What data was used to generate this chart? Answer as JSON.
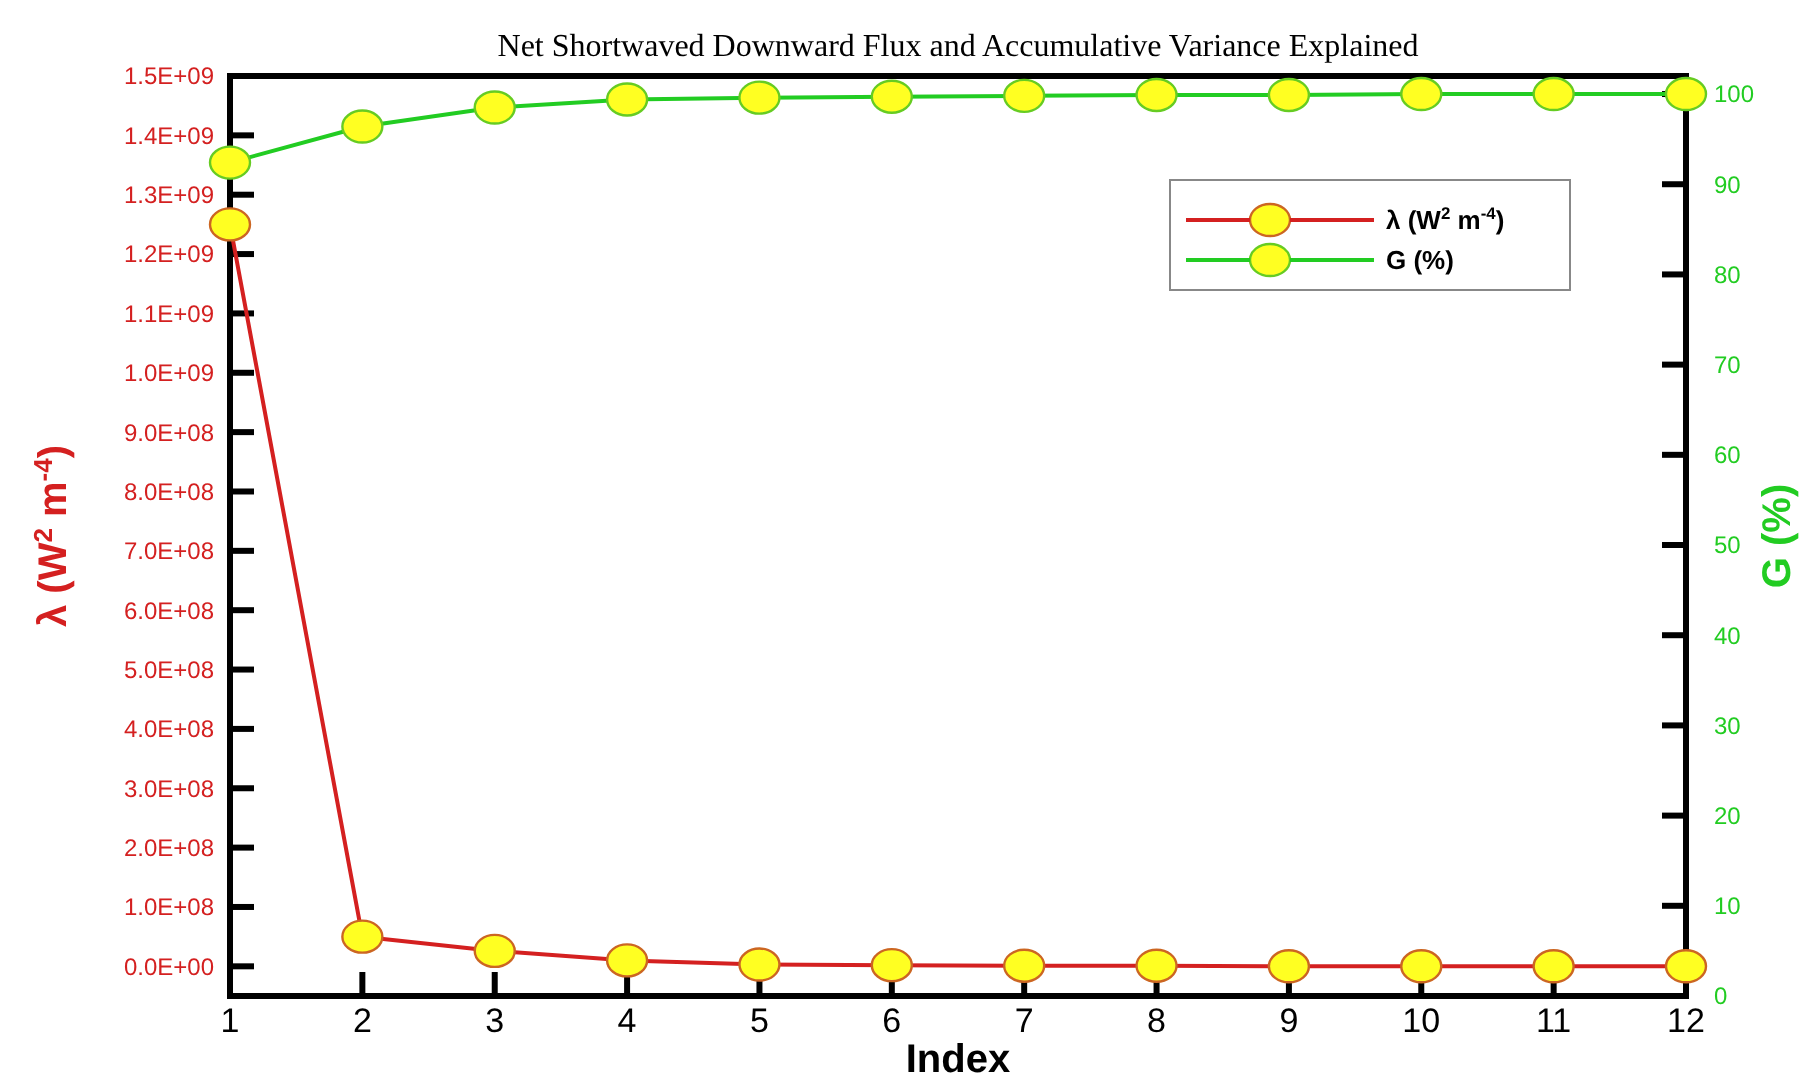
{
  "chart_data": {
    "type": "line",
    "title": "Net Shortwaved Downward Flux and Accumulative Variance Explained",
    "xlabel": "Index",
    "ylabel": "λ (W$^{2}$ m$^{-4}$)",
    "y2label": "G (%)",
    "x": [
      1,
      2,
      3,
      4,
      5,
      6,
      7,
      8,
      9,
      10,
      11,
      12
    ],
    "series": [
      {
        "name": "λ (W$^{2}$ m$^{-4}$)",
        "color": "#d42020",
        "values": [
          1250000000,
          50000000,
          26000000,
          10000000,
          3000000,
          2000000,
          1000000,
          1000000,
          0,
          0,
          0,
          0
        ]
      },
      {
        "name": "G (%)",
        "color": "#22cc22",
        "axis": "y2",
        "values": [
          92.4,
          96.4,
          98.5,
          99.4,
          99.6,
          99.7,
          99.8,
          99.9,
          99.9,
          100,
          100,
          100
        ]
      }
    ],
    "xlim": [
      1,
      12
    ],
    "xticks": [
      1,
      2,
      3,
      4,
      5,
      6,
      7,
      8,
      9,
      10,
      11,
      12
    ],
    "ylim": [
      -50000000,
      1500000000
    ],
    "yticks": [
      {
        "value": 0,
        "label": "0.0E+00"
      },
      {
        "value": 100000000,
        "label": "1.0E+08"
      },
      {
        "value": 200000000,
        "label": "2.0E+08"
      },
      {
        "value": 300000000,
        "label": "3.0E+08"
      },
      {
        "value": 400000000,
        "label": "4.0E+08"
      },
      {
        "value": 500000000,
        "label": "5.0E+08"
      },
      {
        "value": 600000000,
        "label": "6.0E+08"
      },
      {
        "value": 700000000,
        "label": "7.0E+08"
      },
      {
        "value": 800000000,
        "label": "8.0E+08"
      },
      {
        "value": 900000000,
        "label": "9.0E+08"
      },
      {
        "value": 1000000000,
        "label": "1.0E+09"
      },
      {
        "value": 1100000000,
        "label": "1.1E+09"
      },
      {
        "value": 1200000000,
        "label": "1.2E+09"
      },
      {
        "value": 1300000000,
        "label": "1.3E+09"
      },
      {
        "value": 1400000000,
        "label": "1.4E+09"
      },
      {
        "value": 1500000000,
        "label": "1.5E+09"
      }
    ],
    "y2lim": [
      0,
      102
    ],
    "y2ticks": [
      0,
      10,
      20,
      30,
      40,
      50,
      60,
      70,
      80,
      90,
      100
    ],
    "legend": "top right",
    "marker": "circle",
    "line_style": "solid",
    "grid": false
  }
}
